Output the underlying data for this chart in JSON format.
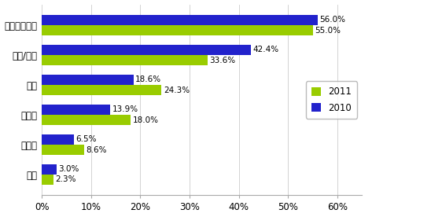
{
  "categories": [
    "公司结算账户",
    "支票/电汇",
    "网银",
    "支付宝",
    "信用卡",
    "其它"
  ],
  "values_2011": [
    55.0,
    33.6,
    24.3,
    18.0,
    8.6,
    2.3
  ],
  "values_2010": [
    56.0,
    42.4,
    18.6,
    13.9,
    6.5,
    3.0
  ],
  "color_2011": "#99cc00",
  "color_2010": "#2222cc",
  "xlim": [
    0,
    65
  ],
  "xticks": [
    0,
    10,
    20,
    30,
    40,
    50,
    60
  ],
  "xtick_labels": [
    "0%",
    "10%",
    "20%",
    "30%",
    "40%",
    "50%",
    "60%"
  ],
  "legend_labels": [
    "2011",
    "2010"
  ],
  "bar_height": 0.35,
  "fontsize_labels": 8.5,
  "fontsize_values": 7.5,
  "background_color": "#ffffff"
}
